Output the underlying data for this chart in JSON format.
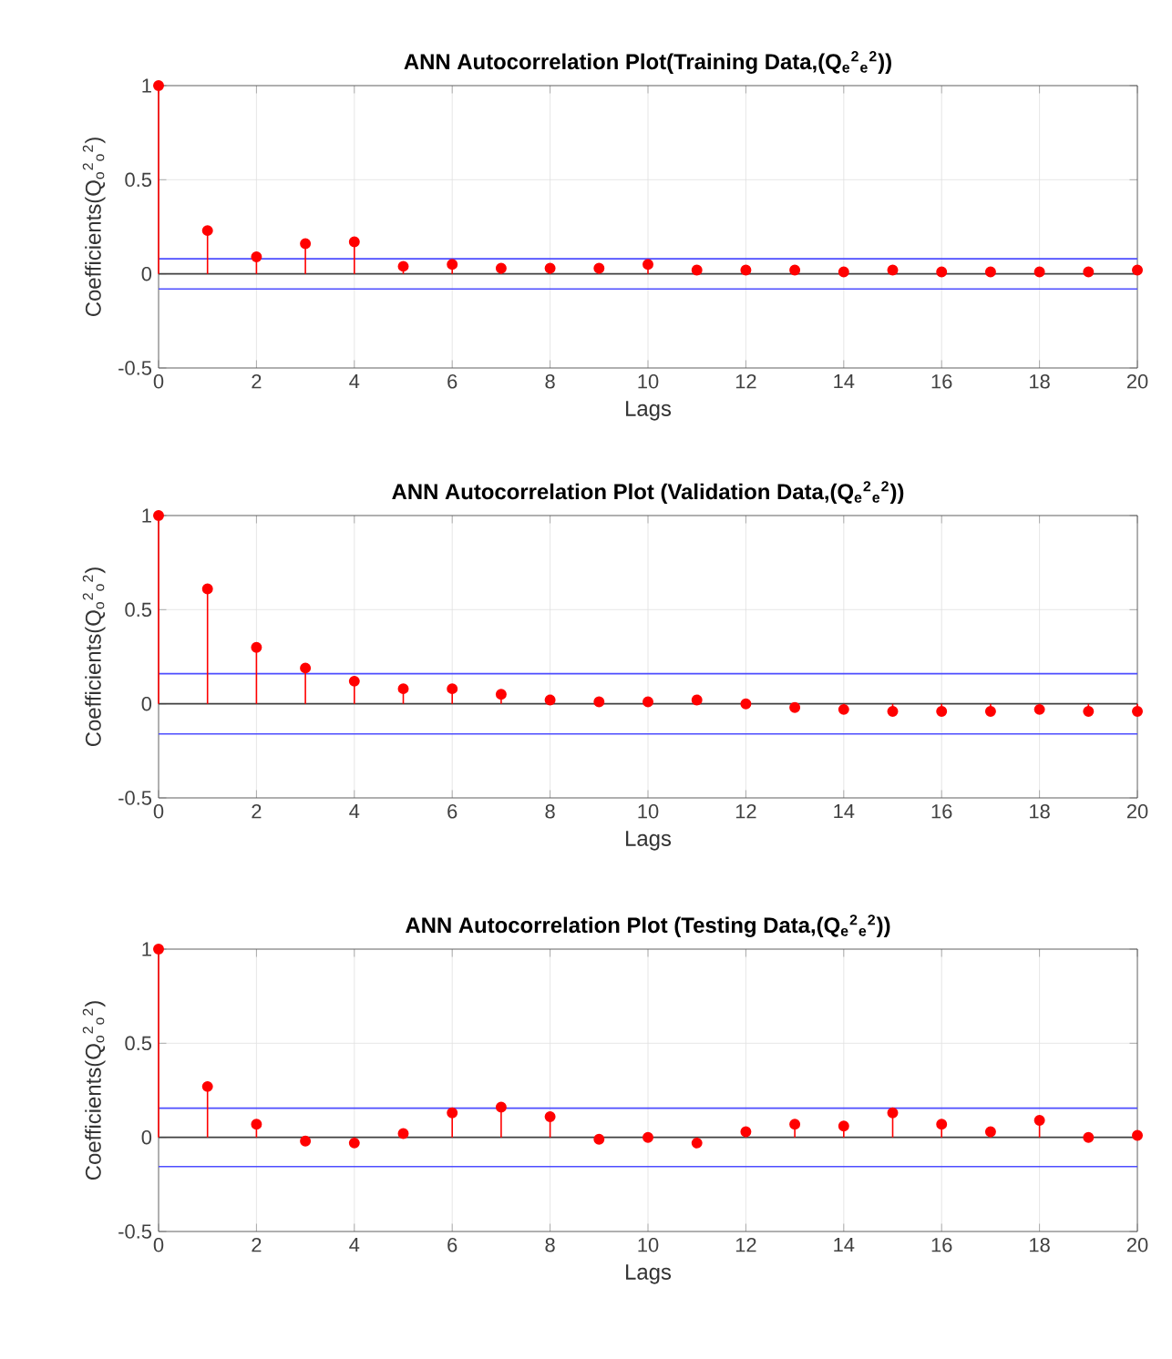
{
  "chart_data": [
    {
      "type": "lollipop",
      "title": "ANN Autocorrelation Plot(Training Data,(Q$_{e}$$^{2}$$_{e}$$^{2}$))",
      "xlabel": "Lags",
      "ylabel": "Coefficients(Q$_{o}$$^{2}$$_{o}$$^{2}$)",
      "x": [
        0,
        1,
        2,
        3,
        4,
        5,
        6,
        7,
        8,
        9,
        10,
        11,
        12,
        13,
        14,
        15,
        16,
        17,
        18,
        19,
        20
      ],
      "values": [
        1,
        0.23,
        0.09,
        0.16,
        0.17,
        0.04,
        0.05,
        0.03,
        0.03,
        0.03,
        0.05,
        0.02,
        0.02,
        0.02,
        0.01,
        0.02,
        0.01,
        0.01,
        0.01,
        0.01,
        0.02
      ],
      "color": "#ff0000",
      "marker": "circle",
      "grid": true,
      "xlim": [
        0,
        20
      ],
      "ylim": [
        -0.5,
        1
      ],
      "xticks": [
        0,
        2,
        4,
        6,
        8,
        10,
        12,
        14,
        16,
        18,
        20
      ],
      "yticks": [
        -0.5,
        0,
        0.5,
        1
      ],
      "ref_lines": [
        {
          "axis": "y",
          "value": 0.08,
          "color": "#4d4dff"
        },
        {
          "axis": "y",
          "value": -0.08,
          "color": "#4d4dff"
        }
      ]
    },
    {
      "type": "lollipop",
      "title": "ANN Autocorrelation Plot (Validation Data,(Q$_{e}$$^{2}$$_{e}$$^{2}$))",
      "xlabel": "Lags",
      "ylabel": "Coefficients(Q$_{o}$$^{2}$$_{o}$$^{2}$)",
      "x": [
        0,
        1,
        2,
        3,
        4,
        5,
        6,
        7,
        8,
        9,
        10,
        11,
        12,
        13,
        14,
        15,
        16,
        17,
        18,
        19,
        20
      ],
      "values": [
        1,
        0.61,
        0.3,
        0.19,
        0.12,
        0.08,
        0.08,
        0.05,
        0.02,
        0.01,
        0.01,
        0.02,
        0.0,
        -0.02,
        -0.03,
        -0.04,
        -0.04,
        -0.04,
        -0.03,
        -0.04,
        -0.04
      ],
      "color": "#ff0000",
      "marker": "circle",
      "grid": true,
      "xlim": [
        0,
        20
      ],
      "ylim": [
        -0.5,
        1
      ],
      "xticks": [
        0,
        2,
        4,
        6,
        8,
        10,
        12,
        14,
        16,
        18,
        20
      ],
      "yticks": [
        -0.5,
        0,
        0.5,
        1
      ],
      "ref_lines": [
        {
          "axis": "y",
          "value": 0.16,
          "color": "#4d4dff"
        },
        {
          "axis": "y",
          "value": -0.16,
          "color": "#4d4dff"
        }
      ]
    },
    {
      "type": "lollipop",
      "title": "ANN Autocorrelation Plot (Testing Data,(Q$_{e}$$^{2}$$_{e}$$^{2}$))",
      "xlabel": "Lags",
      "ylabel": "Coefficients(Q$_{o}$$^{2}$$_{o}$$^{2}$)",
      "x": [
        0,
        1,
        2,
        3,
        4,
        5,
        6,
        7,
        8,
        9,
        10,
        11,
        12,
        13,
        14,
        15,
        16,
        17,
        18,
        19,
        20
      ],
      "values": [
        1,
        0.27,
        0.07,
        -0.02,
        -0.03,
        0.02,
        0.13,
        0.16,
        0.11,
        -0.01,
        0.0,
        -0.03,
        0.03,
        0.07,
        0.06,
        0.13,
        0.07,
        0.03,
        0.09,
        0.0,
        0.01
      ],
      "color": "#ff0000",
      "marker": "circle",
      "grid": true,
      "xlim": [
        0,
        20
      ],
      "ylim": [
        -0.5,
        1
      ],
      "xticks": [
        0,
        2,
        4,
        6,
        8,
        10,
        12,
        14,
        16,
        18,
        20
      ],
      "yticks": [
        -0.5,
        0,
        0.5,
        1
      ],
      "ref_lines": [
        {
          "axis": "y",
          "value": 0.155,
          "color": "#4d4dff"
        },
        {
          "axis": "y",
          "value": -0.155,
          "color": "#4d4dff"
        }
      ]
    }
  ]
}
